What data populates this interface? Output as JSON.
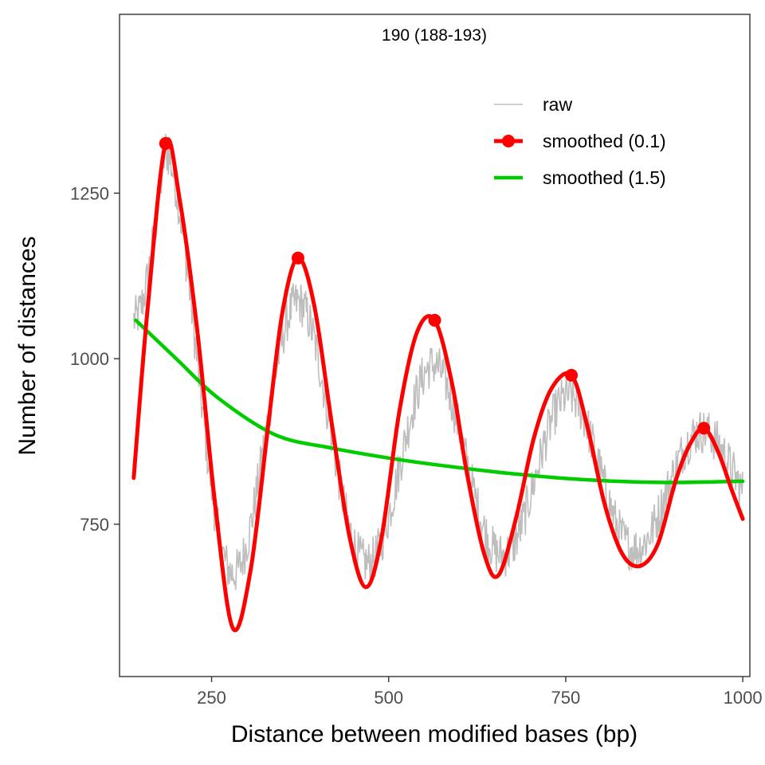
{
  "chart_data": {
    "type": "line",
    "annotation": "190 (188-193)",
    "xlabel": "Distance between modified bases (bp)",
    "ylabel": "Number of distances",
    "xlim": [
      120,
      1010
    ],
    "ylim": [
      520,
      1520
    ],
    "x_ticks": [
      250,
      500,
      750,
      1000
    ],
    "y_ticks": [
      750,
      1000,
      1250
    ],
    "grid": false,
    "legend_position": "top-right",
    "colors": {
      "raw": "#bebebe",
      "smoothed_0_1": "#ff0000",
      "smoothed_1_5": "#00cc00"
    },
    "legend": [
      {
        "key": "raw",
        "label": "raw"
      },
      {
        "key": "smoothed_0_1",
        "label": "smoothed (0.1)"
      },
      {
        "key": "smoothed_1_5",
        "label": "smoothed (1.5)"
      }
    ],
    "raw_model": {
      "x_range": [
        140,
        1000
      ],
      "amplitude_points": [
        [
          140,
          0
        ],
        [
          175,
          220
        ],
        [
          185,
          300
        ],
        [
          280,
          250
        ],
        [
          370,
          210
        ],
        [
          465,
          165
        ],
        [
          565,
          150
        ],
        [
          655,
          125
        ],
        [
          760,
          125
        ],
        [
          855,
          100
        ],
        [
          950,
          75
        ],
        [
          1000,
          65
        ]
      ],
      "period": 190,
      "phase_x": 185,
      "noise": 35
    },
    "series": [
      {
        "key": "smoothed_0_1",
        "name": "smoothed (0.1)",
        "x": [
          140,
          160,
          185,
          205,
          230,
          255,
          280,
          305,
          330,
          350,
          372,
          395,
          420,
          445,
          468,
          490,
          515,
          540,
          565,
          590,
          610,
          635,
          655,
          680,
          705,
          730,
          758,
          780,
          805,
          830,
          855,
          880,
          905,
          925,
          945,
          965,
          985,
          1000
        ],
        "y": [
          820,
          1080,
          1325,
          1240,
          1040,
          780,
          593,
          680,
          900,
          1070,
          1152,
          1080,
          900,
          730,
          655,
          730,
          920,
          1040,
          1058,
          960,
          830,
          705,
          673,
          760,
          880,
          955,
          975,
          900,
          780,
          705,
          687,
          720,
          815,
          870,
          895,
          860,
          800,
          758
        ]
      },
      {
        "key": "smoothed_1_5",
        "name": "smoothed (1.5)",
        "x": [
          143,
          200,
          260,
          340,
          420,
          500,
          580,
          660,
          740,
          820,
          900,
          1000
        ],
        "y": [
          1058,
          1000,
          940,
          885,
          865,
          850,
          838,
          828,
          820,
          815,
          813,
          815
        ]
      }
    ],
    "peaks": {
      "x": [
        185,
        372,
        565,
        758,
        945
      ],
      "y": [
        1325,
        1152,
        1058,
        975,
        895
      ]
    }
  }
}
